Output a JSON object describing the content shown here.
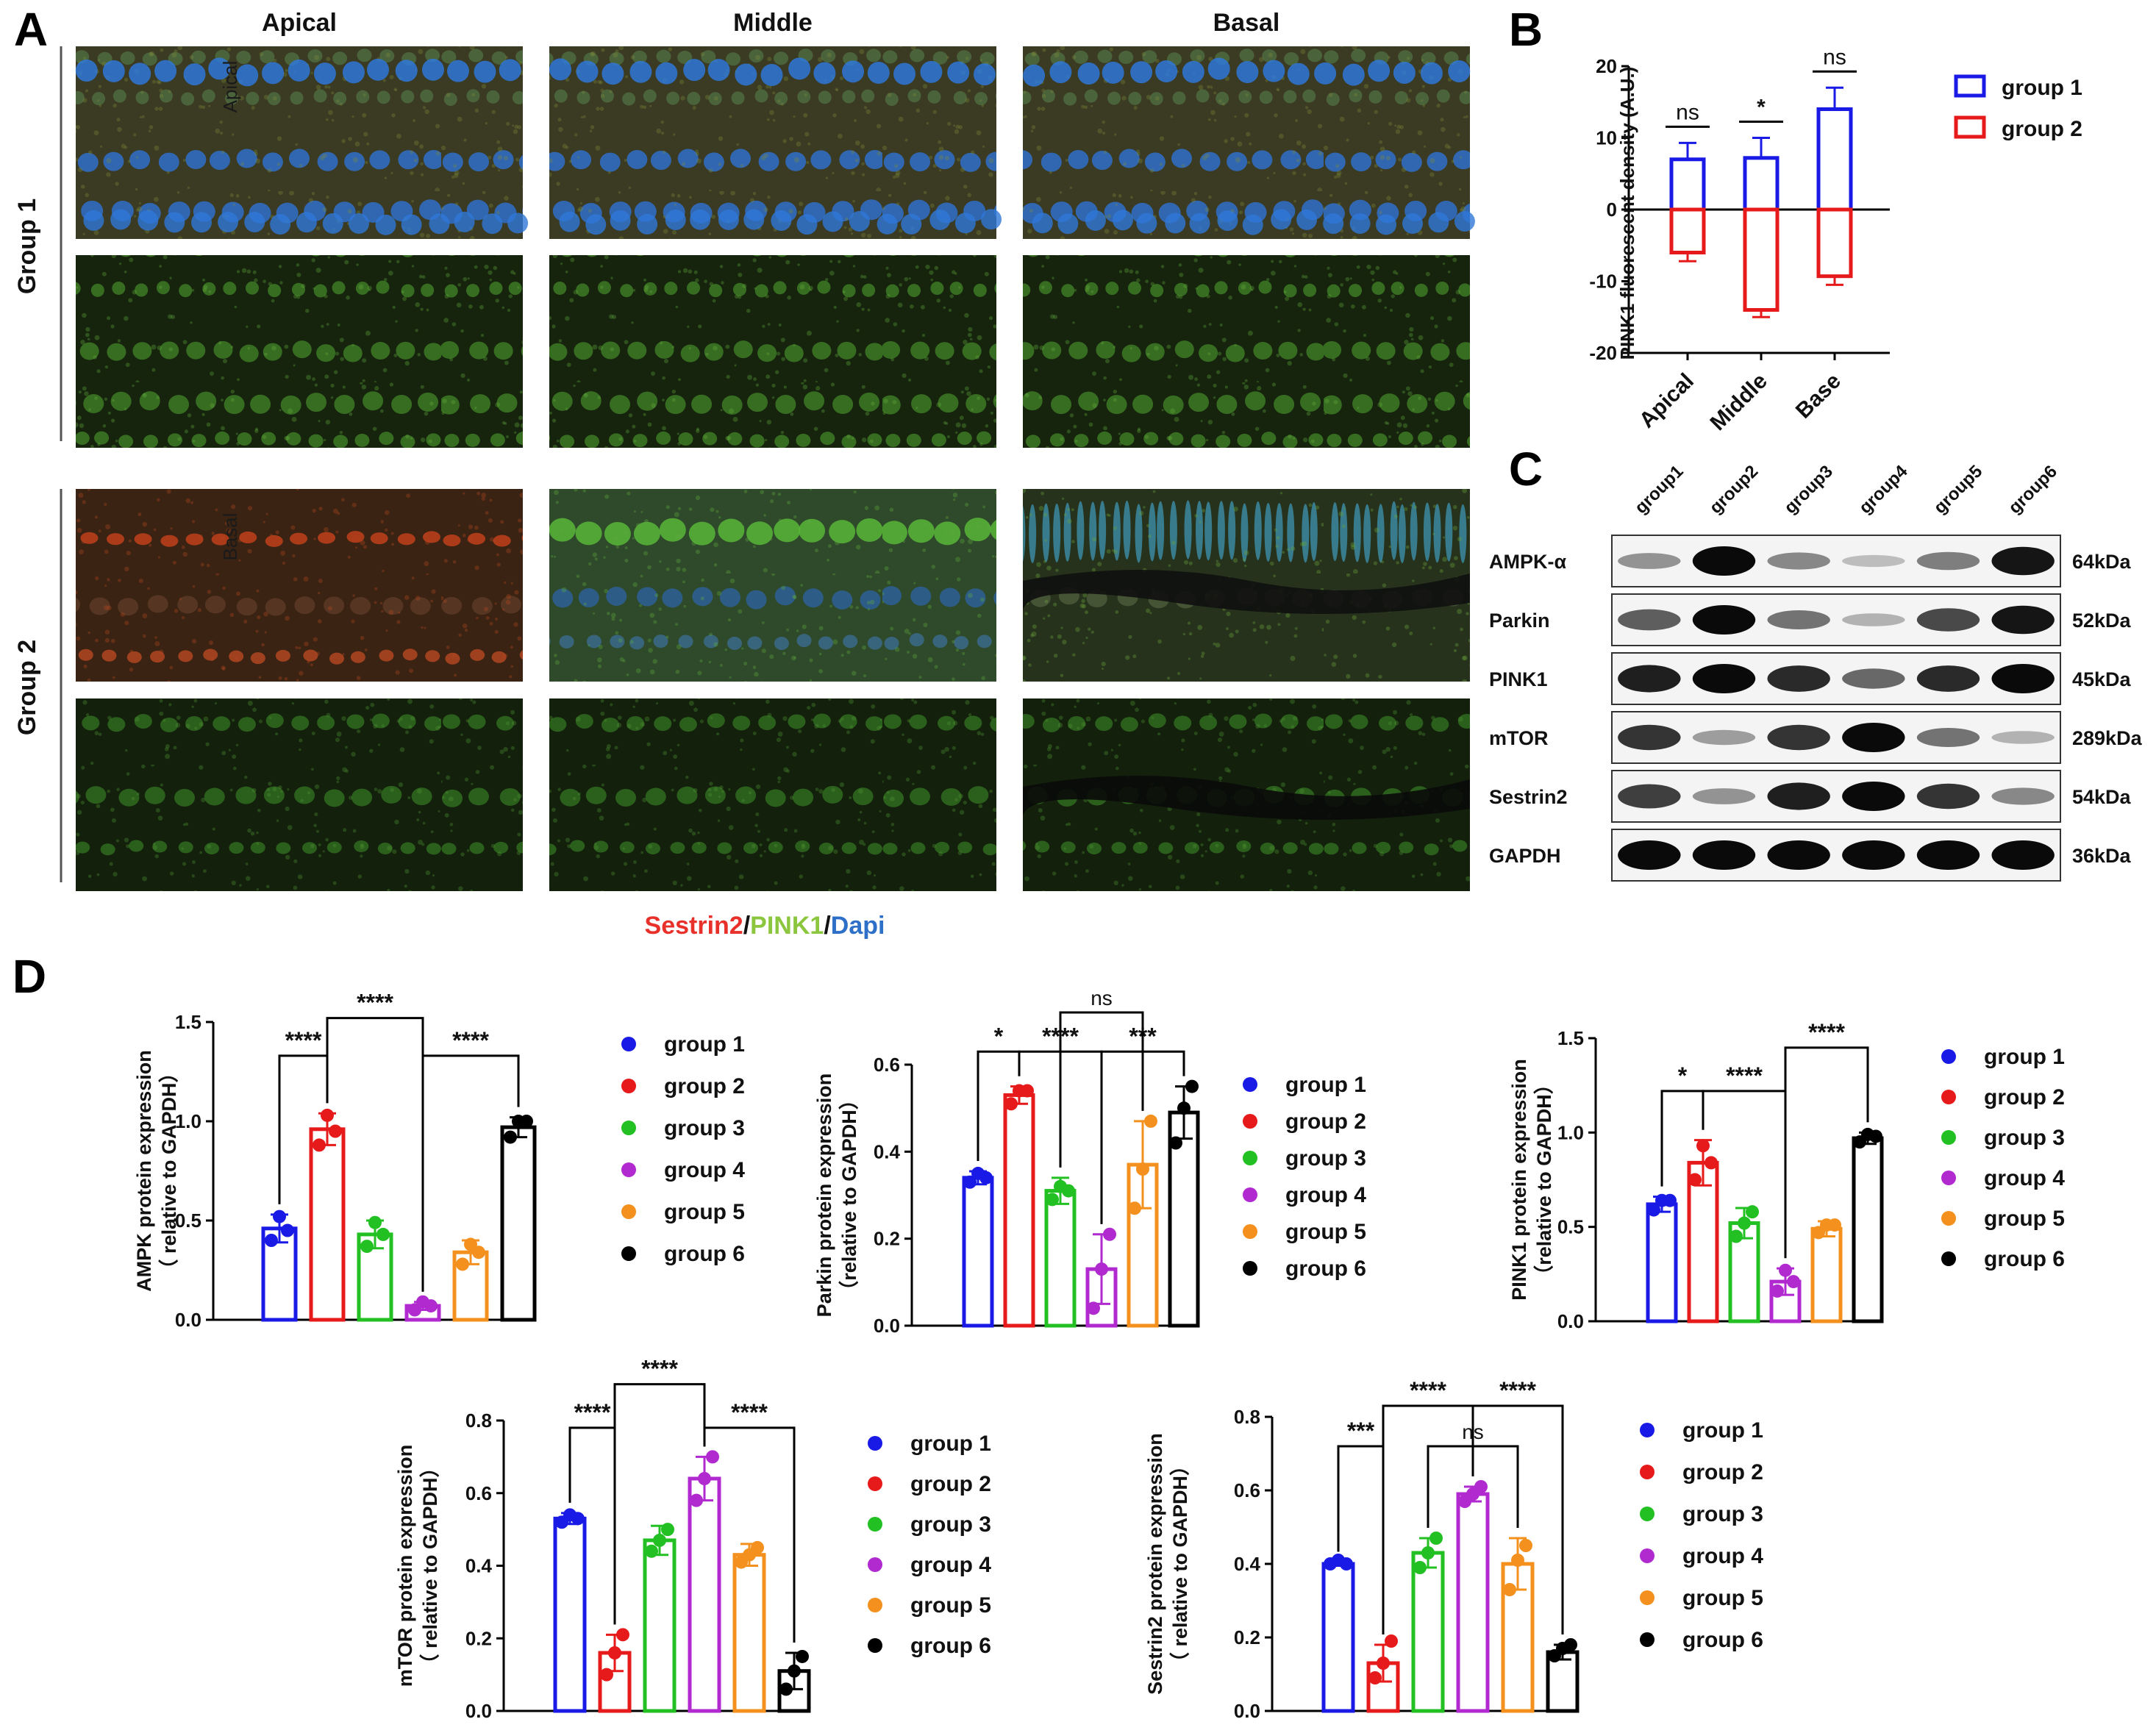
{
  "panel_letters": [
    "A",
    "B",
    "C",
    "D"
  ],
  "microscopy": {
    "columns": [
      "Apical",
      "Middle",
      "Basal"
    ],
    "rows": [
      "Group 1",
      "Group 2"
    ],
    "overlay_labels": [
      "Apical",
      "Basal"
    ],
    "stain_label": {
      "part1": "Sestrin2",
      "sep1": "/",
      "part2": "PINK1",
      "sep2": "/",
      "part3": "Dapi"
    },
    "colors": {
      "sestrin2": "#e8312a",
      "pink1": "#8cc63f",
      "dapi": "#2e6fc7"
    }
  },
  "western": {
    "lanes": [
      "group1",
      "group2",
      "group3",
      "group4",
      "group5",
      "group6"
    ],
    "rows": [
      {
        "protein": "AMPK-α",
        "kda": "64kDa",
        "intensity": [
          0.35,
          1.0,
          0.4,
          0.15,
          0.45,
          0.95
        ]
      },
      {
        "protein": "Parkin",
        "kda": "52kDa",
        "intensity": [
          0.6,
          1.0,
          0.5,
          0.2,
          0.7,
          0.95
        ]
      },
      {
        "protein": "PINK1",
        "kda": "45kDa",
        "intensity": [
          0.9,
          1.0,
          0.85,
          0.55,
          0.85,
          1.0
        ]
      },
      {
        "protein": "mTOR",
        "kda": "289kDa",
        "intensity": [
          0.8,
          0.3,
          0.8,
          1.0,
          0.5,
          0.2
        ]
      },
      {
        "protein": "Sestrin2",
        "kda": "54kDa",
        "intensity": [
          0.75,
          0.35,
          0.9,
          1.0,
          0.8,
          0.4
        ]
      },
      {
        "protein": "GAPDH",
        "kda": "36kDa",
        "intensity": [
          1.0,
          1.0,
          1.0,
          1.0,
          1.0,
          1.0
        ]
      }
    ]
  },
  "chart_data": [
    {
      "id": "B",
      "type": "bar",
      "categories": [
        "Apical",
        "Middle",
        "Base"
      ],
      "series": [
        {
          "name": "group 1",
          "color": "#1a1ae6",
          "values": [
            7,
            7.2,
            14
          ],
          "err": [
            2.3,
            2.8,
            3.0
          ]
        },
        {
          "name": "group 2",
          "color": "#e61a1a",
          "values": [
            -6,
            -14,
            -9.3
          ],
          "err": [
            1.2,
            1.0,
            1.2
          ]
        }
      ],
      "ylabel": "PINK1 fluorescent density (A.U.)",
      "ylim": [
        -20,
        20
      ],
      "yticks": [
        -20,
        -10,
        0,
        10,
        20
      ],
      "significance": [
        "ns",
        "*",
        "ns"
      ],
      "legend_position": "right"
    },
    {
      "id": "D-AMPK",
      "type": "bar",
      "categories": [
        "group 1",
        "group 2",
        "group 3",
        "group 4",
        "group 5",
        "group 6"
      ],
      "colors": [
        "#1a1ae6",
        "#e61a1a",
        "#22c022",
        "#b02ad0",
        "#f3901e",
        "#000000"
      ],
      "values": [
        0.46,
        0.96,
        0.43,
        0.07,
        0.34,
        0.97
      ],
      "err": [
        0.07,
        0.08,
        0.07,
        0.02,
        0.06,
        0.05
      ],
      "points": [
        [
          0.4,
          0.52,
          0.45
        ],
        [
          0.88,
          1.03,
          0.95
        ],
        [
          0.37,
          0.49,
          0.43
        ],
        [
          0.05,
          0.09,
          0.07
        ],
        [
          0.28,
          0.38,
          0.34
        ],
        [
          0.92,
          1.0,
          1.0
        ]
      ],
      "ylabel1": "AMPK protein expression",
      "ylabel2": "（ relative to GAPDH）",
      "ylim": [
        0,
        1.5
      ],
      "yticks": [
        0.0,
        0.5,
        1.0,
        1.5
      ],
      "brackets": [
        {
          "from": 0,
          "to": 1,
          "label": "****",
          "level": 1.33
        },
        {
          "from": 3,
          "to": 5,
          "label": "****",
          "level": 1.33
        },
        {
          "from": 1,
          "to": 3,
          "label": "****",
          "level": 1.52
        }
      ],
      "legend_position": "right"
    },
    {
      "id": "D-Parkin",
      "type": "bar",
      "categories": [
        "group 1",
        "group 2",
        "group 3",
        "group 4",
        "group 5",
        "group 6"
      ],
      "colors": [
        "#1a1ae6",
        "#e61a1a",
        "#22c022",
        "#b02ad0",
        "#f3901e",
        "#000000"
      ],
      "values": [
        0.34,
        0.53,
        0.31,
        0.13,
        0.37,
        0.49
      ],
      "err": [
        0.015,
        0.02,
        0.03,
        0.08,
        0.1,
        0.06
      ],
      "points": [
        [
          0.33,
          0.35,
          0.34
        ],
        [
          0.51,
          0.54,
          0.54
        ],
        [
          0.29,
          0.32,
          0.31
        ],
        [
          0.04,
          0.13,
          0.21
        ],
        [
          0.27,
          0.36,
          0.47
        ],
        [
          0.42,
          0.5,
          0.55
        ]
      ],
      "ylabel1": "Parkin protein expression",
      "ylabel2": "（relative to GAPDH）",
      "ylim": [
        0,
        0.6
      ],
      "yticks": [
        0.0,
        0.2,
        0.4,
        0.6
      ],
      "brackets": [
        {
          "from": 0,
          "to": 1,
          "label": "*",
          "level": 0.63
        },
        {
          "from": 1,
          "to": 3,
          "label": "****",
          "level": 0.63
        },
        {
          "from": 3,
          "to": 5,
          "label": "***",
          "level": 0.63
        },
        {
          "from": 2,
          "to": 4,
          "label": "ns",
          "level": 0.72
        }
      ],
      "legend_position": "right"
    },
    {
      "id": "D-PINK1",
      "type": "bar",
      "categories": [
        "group 1",
        "group 2",
        "group 3",
        "group 4",
        "group 5",
        "group 6"
      ],
      "colors": [
        "#1a1ae6",
        "#e61a1a",
        "#22c022",
        "#b02ad0",
        "#f3901e",
        "#000000"
      ],
      "values": [
        0.62,
        0.84,
        0.52,
        0.21,
        0.49,
        0.97
      ],
      "err": [
        0.04,
        0.12,
        0.08,
        0.07,
        0.04,
        0.03
      ],
      "points": [
        [
          0.59,
          0.64,
          0.64
        ],
        [
          0.75,
          0.93,
          0.84
        ],
        [
          0.45,
          0.52,
          0.58
        ],
        [
          0.16,
          0.27,
          0.21
        ],
        [
          0.47,
          0.51,
          0.51
        ],
        [
          0.95,
          0.99,
          0.98
        ]
      ],
      "ylabel1": "PINK1 protein expression",
      "ylabel2": "（relative to GAPDH）",
      "ylim": [
        0,
        1.5
      ],
      "yticks": [
        0.0,
        0.5,
        1.0,
        1.5
      ],
      "brackets": [
        {
          "from": 0,
          "to": 1,
          "label": "*",
          "level": 1.22
        },
        {
          "from": 1,
          "to": 3,
          "label": "****",
          "level": 1.22
        },
        {
          "from": 3,
          "to": 5,
          "label": "****",
          "level": 1.45
        }
      ],
      "legend_position": "right"
    },
    {
      "id": "D-mTOR",
      "type": "bar",
      "categories": [
        "group 1",
        "group 2",
        "group 3",
        "group 4",
        "group 5",
        "group 6"
      ],
      "colors": [
        "#1a1ae6",
        "#e61a1a",
        "#22c022",
        "#b02ad0",
        "#f3901e",
        "#000000"
      ],
      "values": [
        0.53,
        0.16,
        0.47,
        0.64,
        0.43,
        0.11
      ],
      "err": [
        0.015,
        0.05,
        0.04,
        0.06,
        0.03,
        0.05
      ],
      "points": [
        [
          0.52,
          0.54,
          0.53
        ],
        [
          0.1,
          0.16,
          0.21
        ],
        [
          0.44,
          0.47,
          0.5
        ],
        [
          0.58,
          0.64,
          0.7
        ],
        [
          0.41,
          0.43,
          0.45
        ],
        [
          0.06,
          0.11,
          0.15
        ]
      ],
      "ylabel1": "mTOR protein expression",
      "ylabel2": "（ relative to GAPDH）",
      "ylim": [
        0,
        0.8
      ],
      "yticks": [
        0.0,
        0.2,
        0.4,
        0.6,
        0.8
      ],
      "brackets": [
        {
          "from": 0,
          "to": 1,
          "label": "****",
          "level": 0.78
        },
        {
          "from": 3,
          "to": 5,
          "label": "****",
          "level": 0.78
        },
        {
          "from": 1,
          "to": 3,
          "label": "****",
          "level": 0.9
        }
      ],
      "legend_position": "right"
    },
    {
      "id": "D-Sestrin2",
      "type": "bar",
      "categories": [
        "group 1",
        "group 2",
        "group 3",
        "group 4",
        "group 5",
        "group 6"
      ],
      "colors": [
        "#1a1ae6",
        "#e61a1a",
        "#22c022",
        "#b02ad0",
        "#f3901e",
        "#000000"
      ],
      "values": [
        0.4,
        0.13,
        0.43,
        0.59,
        0.4,
        0.16
      ],
      "err": [
        0.005,
        0.05,
        0.04,
        0.02,
        0.07,
        0.02
      ],
      "points": [
        [
          0.4,
          0.41,
          0.4
        ],
        [
          0.09,
          0.13,
          0.19
        ],
        [
          0.39,
          0.43,
          0.47
        ],
        [
          0.57,
          0.59,
          0.61
        ],
        [
          0.33,
          0.41,
          0.45
        ],
        [
          0.15,
          0.17,
          0.18
        ]
      ],
      "ylabel1": "Sestrin2 protein expression",
      "ylabel2": "（ relative to GAPDH）",
      "ylim": [
        0,
        0.8
      ],
      "yticks": [
        0.0,
        0.2,
        0.4,
        0.6,
        0.8
      ],
      "brackets": [
        {
          "from": 0,
          "to": 1,
          "label": "***",
          "level": 0.72
        },
        {
          "from": 1,
          "to": 3,
          "label": "****",
          "level": 0.83
        },
        {
          "from": 3,
          "to": 5,
          "label": "****",
          "level": 0.83
        },
        {
          "from": 2,
          "to": 4,
          "label": "ns",
          "level": 0.72
        }
      ],
      "legend_position": "right"
    }
  ]
}
